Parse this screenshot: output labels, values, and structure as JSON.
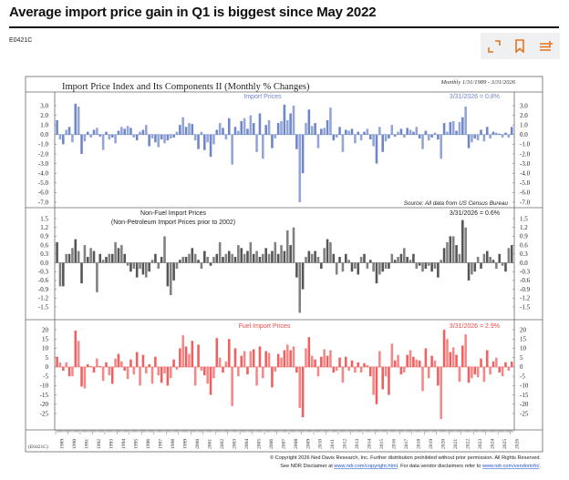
{
  "header": {
    "title": "Average import price gain in Q1 is biggest since May 2022",
    "code": "E0421C",
    "actions": [
      {
        "icon": "expand-icon",
        "label": "Expand"
      },
      {
        "icon": "bookmark-icon",
        "label": "Bookmark"
      },
      {
        "icon": "add-to-list-icon",
        "label": "Add to list"
      }
    ],
    "accent_color": "#e8731a"
  },
  "chart_meta": {
    "title": "Import Price Index and Its Components II (Monthly % Changes)",
    "range_note": "Monthly 1/31/1989 - 3/31/2026",
    "source": "Source: All data from US Census Bureau",
    "chart_code": "(E0421C)",
    "copyright_line1": "© Copyright 2026 Ned Davis Research, Inc.  Further distribution prohibited without prior permission.  All Rights Reserved.",
    "copyright_line2_prefix": "See NDR Disclaimer at ",
    "copyright_link1": "www.ndr.com/copyright.html",
    "copyright_line2_mid": ". For data vendor disclaimers refer to ",
    "copyright_link2": "www.ndr.com/vendorinfo/",
    "copyright_line2_suffix": "."
  },
  "chart_data": [
    {
      "type": "bar",
      "title": "Import Prices",
      "annotation": "3/31/2026 = 0.8%",
      "color": "#6f86c9",
      "ylim": [
        -7.3,
        3.6
      ],
      "yticks": [
        "3.0",
        "2.0",
        "1.0",
        "0.0",
        "-1.0",
        "-2.0",
        "-3.0",
        "-4.0",
        "-5.0",
        "-6.0",
        "-7.0"
      ],
      "period_start": "1989-Q1",
      "frequency": "quarterly",
      "values": [
        1.5,
        -0.5,
        -1.0,
        0.5,
        0.8,
        -0.8,
        3.2,
        2.9,
        -2.0,
        -0.7,
        0.3,
        -0.3,
        0.5,
        0.7,
        -0.2,
        -1.6,
        0.3,
        -0.5,
        -0.3,
        -0.9,
        0.4,
        0.8,
        0.6,
        0.9,
        0.7,
        -0.3,
        -0.6,
        0.3,
        0.5,
        1.0,
        -1.2,
        -0.4,
        -0.8,
        -1.3,
        -0.5,
        -0.9,
        -0.6,
        -0.4,
        -0.3,
        0.3,
        1.0,
        1.8,
        0.8,
        1.2,
        1.1,
        -0.6,
        -1.5,
        0.3,
        -1.6,
        -0.8,
        -2.3,
        -1.0,
        0.5,
        1.2,
        0.7,
        -0.5,
        1.7,
        -3.1,
        0.8,
        0.4,
        1.4,
        1.7,
        0.6,
        2.0,
        1.2,
        -1.8,
        2.2,
        -2.5,
        1.0,
        1.5,
        -1.4,
        -0.4,
        1.2,
        1.4,
        3.1,
        1.5,
        2.2,
        3.0,
        -1.5,
        -7.0,
        -4.0,
        1.2,
        2.6,
        0.9,
        1.2,
        -1.4,
        0.6,
        0.7,
        1.5,
        2.8,
        -0.6,
        -0.3,
        0.8,
        -1.8,
        0.5,
        0.4,
        0.6,
        -0.9,
        0.3,
        -0.6,
        0.3,
        0.6,
        -0.5,
        -1.2,
        -3.0,
        0.8,
        -1.8,
        -0.7,
        -0.4,
        1.0,
        -0.2,
        0.3,
        0.6,
        -0.3,
        0.7,
        0.5,
        0.3,
        0.8,
        -0.4,
        -1.5,
        0.4,
        -0.6,
        -0.3,
        0.2,
        -0.5,
        -2.5,
        1.2,
        0.3,
        1.3,
        1.4,
        0.4,
        1.3,
        1.8,
        2.9,
        -1.4,
        -0.8,
        -0.4,
        -0.6,
        0.5,
        -0.7,
        0.8,
        -0.4,
        0.3,
        0.2,
        0.1,
        -0.3,
        0.2,
        -0.3,
        0.8
      ]
    },
    {
      "type": "bar",
      "title": "Non-Fuel Import Prices",
      "subtitle": "(Non-Petroleum Import Prices prior to 2002)",
      "annotation": "3/31/2026 = 0.6%",
      "color": "#555555",
      "ylim": [
        -1.75,
        1.65
      ],
      "yticks": [
        "1.5",
        "1.2",
        "0.9",
        "0.6",
        "0.3",
        "0.0",
        "-0.3",
        "-0.6",
        "-0.9",
        "-1.2",
        "-1.5"
      ],
      "period_start": "1989-Q1",
      "frequency": "quarterly",
      "values": [
        0.7,
        -0.8,
        -0.8,
        0.3,
        0.3,
        0.5,
        0.8,
        0.4,
        -0.7,
        0.6,
        0.2,
        0.5,
        0.4,
        -1.0,
        0.3,
        0.1,
        0.2,
        0.3,
        0.3,
        0.7,
        0.5,
        0.6,
        0.3,
        -0.1,
        -0.3,
        -0.2,
        -0.5,
        -0.2,
        -0.4,
        -0.5,
        -0.3,
        0.1,
        0.3,
        -0.2,
        0.2,
        0.9,
        -0.8,
        -1.1,
        -0.6,
        -0.2,
        0.1,
        0.2,
        0.2,
        0.3,
        0.5,
        0.3,
        0.1,
        -0.2,
        0.4,
        0.2,
        -0.1,
        0.2,
        0.3,
        0.7,
        0.2,
        0.3,
        0.4,
        0.3,
        0.2,
        0.6,
        0.5,
        0.3,
        0.4,
        0.7,
        0.3,
        0.4,
        0.2,
        0.3,
        0.5,
        0.3,
        0.4,
        0.7,
        0.3,
        0.6,
        0.4,
        1.1,
        0.6,
        1.2,
        -0.5,
        -1.7,
        -0.9,
        0.2,
        0.4,
        0.3,
        0.4,
        0.2,
        -0.2,
        0.5,
        0.8,
        0.7,
        0.3,
        -0.4,
        0.2,
        -0.3,
        0.3,
        0.1,
        -0.3,
        -0.2,
        -0.4,
        0.2,
        0.3,
        -0.2,
        0.1,
        -0.3,
        -0.7,
        -0.4,
        -0.3,
        -0.2,
        -0.2,
        0.3,
        0.1,
        0.2,
        0.3,
        0.5,
        0.2,
        0.1,
        0.3,
        -0.2,
        -0.1,
        -0.3,
        -0.2,
        -0.1,
        -0.3,
        -0.2,
        -0.5,
        0.1,
        0.5,
        0.7,
        0.9,
        0.9,
        0.6,
        0.3,
        1.45,
        1.2,
        -0.6,
        -0.4,
        -0.3,
        0.2,
        -0.2,
        0.3,
        0.4,
        0.2,
        0.1,
        -0.2,
        0.3,
        -0.1,
        -0.3,
        0.5,
        0.6
      ]
    },
    {
      "type": "bar",
      "title": "Fuel Import Prices",
      "annotation": "3/31/2026 = 2.9%",
      "color": "#f06060",
      "ylim": [
        -29,
        22
      ],
      "yticks": [
        "20",
        "15",
        "10",
        "5",
        "0",
        "-5",
        "-10",
        "-15",
        "-20",
        "-25"
      ],
      "period_start": "1989-Q1",
      "frequency": "quarterly",
      "values": [
        5.5,
        2.5,
        -2.0,
        2.5,
        -5.0,
        -5.0,
        19.5,
        14.0,
        -10.5,
        -11.5,
        1.5,
        0.5,
        -3.0,
        4.5,
        0.5,
        -7.5,
        2.5,
        -4.5,
        -9.0,
        4.5,
        7.0,
        3.0,
        -2.0,
        -6.5,
        4.0,
        -4.0,
        8.0,
        -10.0,
        6.5,
        -3.5,
        1.5,
        -9.0,
        5.5,
        -4.5,
        -8.5,
        -3.5,
        -10.0,
        -6.0,
        4.0,
        -1.5,
        10.0,
        17.0,
        11.0,
        7.0,
        14.0,
        -10.0,
        12.0,
        -2.0,
        -4.5,
        -9.0,
        -15.0,
        -6.0,
        15.5,
        5.0,
        -3.0,
        3.0,
        15.0,
        -21.0,
        10.0,
        -5.0,
        6.0,
        8.5,
        -4.0,
        8.5,
        9.5,
        -10.0,
        11.0,
        -6.0,
        8.5,
        7.5,
        -11.0,
        -2.5,
        7.0,
        5.0,
        9.0,
        12.0,
        9.0,
        11.0,
        -3.0,
        -22.0,
        -27.0,
        10.0,
        16.0,
        6.0,
        4.0,
        -5.0,
        5.5,
        9.5,
        6.0,
        9.0,
        -3.0,
        -2.0,
        5.0,
        -8.5,
        5.5,
        -2.0,
        3.5,
        -3.0,
        2.5,
        -3.0,
        2.0,
        1.0,
        -5.0,
        -15.0,
        -20.0,
        8.5,
        -12.0,
        -5.0,
        -15.0,
        12.5,
        3.5,
        6.5,
        -4.0,
        -3.0,
        6.5,
        9.0,
        5.5,
        4.0,
        3.5,
        -13.0,
        10.0,
        -6.0,
        6.0,
        3.5,
        -10.0,
        -28.0,
        20.0,
        15.0,
        8.0,
        10.5,
        6.5,
        -8.0,
        11.5,
        17.5,
        -8.5,
        -6.0,
        -4.0,
        -5.5,
        4.5,
        -8.0,
        9.0,
        -4.0,
        3.0,
        5.0,
        -3.0,
        -5.0,
        2.5,
        -2.0,
        2.9
      ]
    }
  ],
  "x_axis": {
    "start_year": 1989,
    "end_date": "2026-03",
    "tick_labels": [
      "1989",
      "1990",
      "1991",
      "1992",
      "1993",
      "1994",
      "1995",
      "1996",
      "1997",
      "1998",
      "1999",
      "2000",
      "2001",
      "2002",
      "2003",
      "2004",
      "2005",
      "2006",
      "2007",
      "2008",
      "2009",
      "2010",
      "2011",
      "2012",
      "2013",
      "2014",
      "2015",
      "2016",
      "2017",
      "2018",
      "2019",
      "2020",
      "2021",
      "2022",
      "2023",
      "2024",
      "2025",
      "2026"
    ]
  }
}
